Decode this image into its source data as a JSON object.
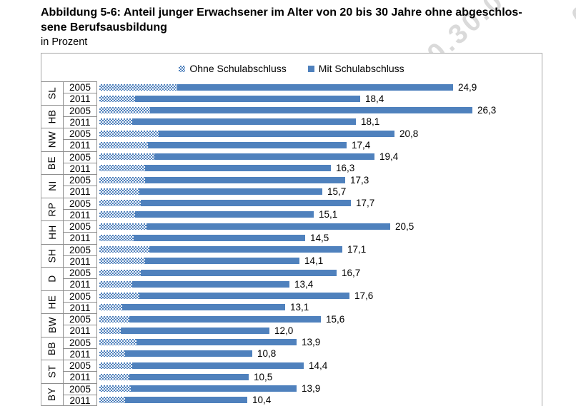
{
  "page": {
    "title_line1": "Abbildung 5-6: Anteil junger Erwachsener im Alter von 20 bis 30 Jahre ohne abgeschlos-",
    "title_line2": "sene Berufsausbildung",
    "subtitle": "in Prozent",
    "watermark": "0.30.0",
    "watermark_fragment": "0"
  },
  "chart_data": {
    "type": "bar",
    "orientation": "horizontal",
    "stacked": true,
    "title": "Abbildung 5-6: Anteil junger Erwachsener im Alter von 20 bis 30 Jahre ohne abgeschlossene Berufsausbildung",
    "unit_label": "in Prozent",
    "legend_position": "top-center",
    "gridlines": false,
    "value_axis": {
      "min": 0,
      "max": 31,
      "ticks_visible": false
    },
    "bar_color": "#4f81bd",
    "legend": [
      {
        "label": "Ohne Schulabschluss",
        "style": "dotted",
        "color": "#4f81bd"
      },
      {
        "label": "Mit Schulabschluss",
        "style": "solid",
        "color": "#4f81bd"
      }
    ],
    "series_names": [
      "Ohne Schulabschluss",
      "Mit Schulabschluss"
    ],
    "note": "Segment split values are estimated from bar geometry; totals are labeled in the figure.",
    "groups": [
      {
        "state": "SL",
        "bars": [
          {
            "year": "2005",
            "ohne_schulabschluss": 5.5,
            "mit_schulabschluss": 19.4,
            "total": 24.9,
            "total_label": "24,9"
          },
          {
            "year": "2011",
            "ohne_schulabschluss": 2.5,
            "mit_schulabschluss": 15.9,
            "total": 18.4,
            "total_label": "18,4"
          }
        ]
      },
      {
        "state": "HB",
        "bars": [
          {
            "year": "2005",
            "ohne_schulabschluss": 3.6,
            "mit_schulabschluss": 22.7,
            "total": 26.3,
            "total_label": "26,3"
          },
          {
            "year": "2011",
            "ohne_schulabschluss": 2.3,
            "mit_schulabschluss": 15.8,
            "total": 18.1,
            "total_label": "18,1"
          }
        ]
      },
      {
        "state": "NW",
        "bars": [
          {
            "year": "2005",
            "ohne_schulabschluss": 4.2,
            "mit_schulabschluss": 16.6,
            "total": 20.8,
            "total_label": "20,8"
          },
          {
            "year": "2011",
            "ohne_schulabschluss": 3.4,
            "mit_schulabschluss": 14.0,
            "total": 17.4,
            "total_label": "17,4"
          }
        ]
      },
      {
        "state": "BE",
        "bars": [
          {
            "year": "2005",
            "ohne_schulabschluss": 3.9,
            "mit_schulabschluss": 15.5,
            "total": 19.4,
            "total_label": "19,4"
          },
          {
            "year": "2011",
            "ohne_schulabschluss": 3.2,
            "mit_schulabschluss": 13.1,
            "total": 16.3,
            "total_label": "16,3"
          }
        ]
      },
      {
        "state": "NI",
        "bars": [
          {
            "year": "2005",
            "ohne_schulabschluss": 3.2,
            "mit_schulabschluss": 14.1,
            "total": 17.3,
            "total_label": "17,3"
          },
          {
            "year": "2011",
            "ohne_schulabschluss": 2.8,
            "mit_schulabschluss": 12.9,
            "total": 15.7,
            "total_label": "15,7"
          }
        ]
      },
      {
        "state": "RP",
        "bars": [
          {
            "year": "2005",
            "ohne_schulabschluss": 2.9,
            "mit_schulabschluss": 14.8,
            "total": 17.7,
            "total_label": "17,7"
          },
          {
            "year": "2011",
            "ohne_schulabschluss": 2.5,
            "mit_schulabschluss": 12.6,
            "total": 15.1,
            "total_label": "15,1"
          }
        ]
      },
      {
        "state": "HH",
        "bars": [
          {
            "year": "2005",
            "ohne_schulabschluss": 3.3,
            "mit_schulabschluss": 17.2,
            "total": 20.5,
            "total_label": "20,5"
          },
          {
            "year": "2011",
            "ohne_schulabschluss": 2.4,
            "mit_schulabschluss": 12.1,
            "total": 14.5,
            "total_label": "14,5"
          }
        ]
      },
      {
        "state": "SH",
        "bars": [
          {
            "year": "2005",
            "ohne_schulabschluss": 3.5,
            "mit_schulabschluss": 13.6,
            "total": 17.1,
            "total_label": "17,1"
          },
          {
            "year": "2011",
            "ohne_schulabschluss": 3.2,
            "mit_schulabschluss": 10.9,
            "total": 14.1,
            "total_label": "14,1"
          }
        ]
      },
      {
        "state": "D",
        "bars": [
          {
            "year": "2005",
            "ohne_schulabschluss": 2.9,
            "mit_schulabschluss": 13.8,
            "total": 16.7,
            "total_label": "16,7"
          },
          {
            "year": "2011",
            "ohne_schulabschluss": 2.3,
            "mit_schulabschluss": 11.1,
            "total": 13.4,
            "total_label": "13,4"
          }
        ]
      },
      {
        "state": "HE",
        "bars": [
          {
            "year": "2005",
            "ohne_schulabschluss": 2.8,
            "mit_schulabschluss": 14.8,
            "total": 17.6,
            "total_label": "17,6"
          },
          {
            "year": "2011",
            "ohne_schulabschluss": 1.6,
            "mit_schulabschluss": 11.5,
            "total": 13.1,
            "total_label": "13,1"
          }
        ]
      },
      {
        "state": "BW",
        "bars": [
          {
            "year": "2005",
            "ohne_schulabschluss": 2.1,
            "mit_schulabschluss": 13.5,
            "total": 15.6,
            "total_label": "15,6"
          },
          {
            "year": "2011",
            "ohne_schulabschluss": 1.5,
            "mit_schulabschluss": 10.5,
            "total": 12.0,
            "total_label": "12,0"
          }
        ]
      },
      {
        "state": "BB",
        "bars": [
          {
            "year": "2005",
            "ohne_schulabschluss": 2.6,
            "mit_schulabschluss": 11.3,
            "total": 13.9,
            "total_label": "13,9"
          },
          {
            "year": "2011",
            "ohne_schulabschluss": 1.8,
            "mit_schulabschluss": 9.0,
            "total": 10.8,
            "total_label": "10,8"
          }
        ]
      },
      {
        "state": "ST",
        "bars": [
          {
            "year": "2005",
            "ohne_schulabschluss": 2.3,
            "mit_schulabschluss": 12.1,
            "total": 14.4,
            "total_label": "14,4"
          },
          {
            "year": "2011",
            "ohne_schulabschluss": 2.1,
            "mit_schulabschluss": 8.4,
            "total": 10.5,
            "total_label": "10,5"
          }
        ]
      },
      {
        "state": "BY",
        "bars": [
          {
            "year": "2005",
            "ohne_schulabschluss": 2.2,
            "mit_schulabschluss": 11.7,
            "total": 13.9,
            "total_label": "13,9"
          },
          {
            "year": "2011",
            "ohne_schulabschluss": 1.8,
            "mit_schulabschluss": 8.6,
            "total": 10.4,
            "total_label": "10,4"
          }
        ]
      }
    ]
  }
}
